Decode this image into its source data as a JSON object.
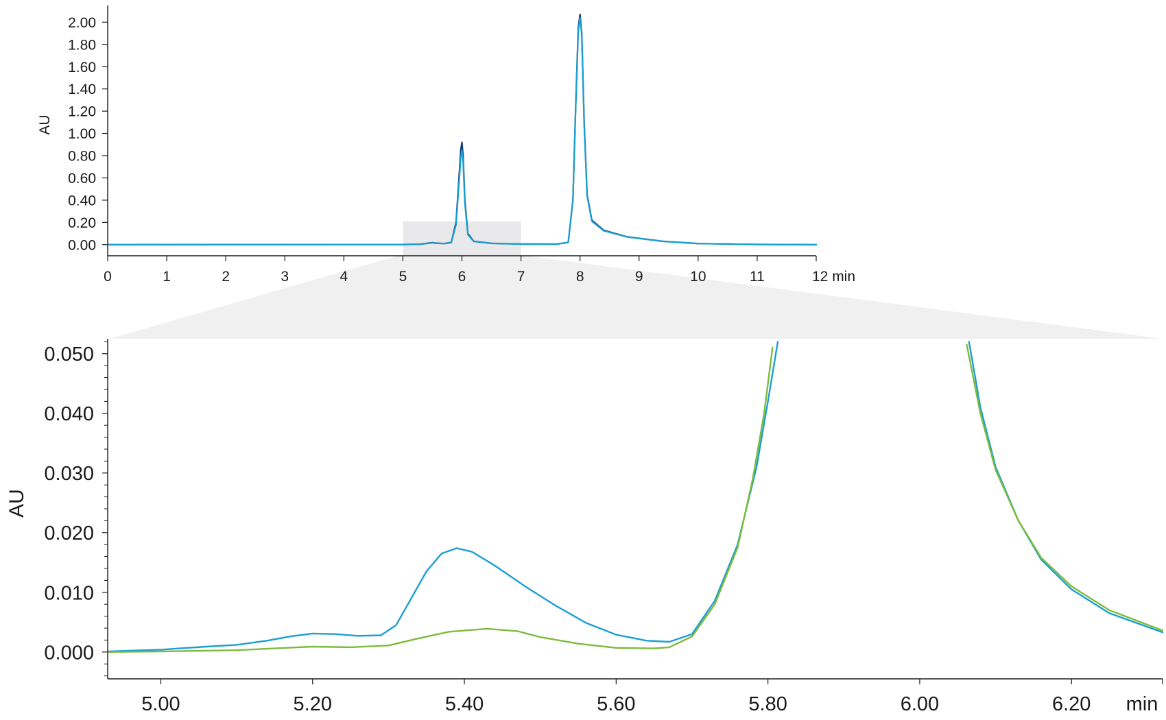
{
  "chart_data": [
    {
      "type": "line",
      "title": "",
      "xlabel": "",
      "ylabel": "AU",
      "x_unit": "min",
      "xlim": [
        0,
        12
      ],
      "ylim": [
        -0.1,
        2.15
      ],
      "xticks": [
        0,
        1,
        2,
        3,
        4,
        5,
        6,
        7,
        8,
        9,
        10,
        11,
        12
      ],
      "xtick_labels": [
        "0",
        "1",
        "2",
        "3",
        "4",
        "5",
        "6",
        "7",
        "8",
        "9",
        "10",
        "11",
        "12 min"
      ],
      "yticks": [
        0,
        0.2,
        0.4,
        0.6,
        0.8,
        1.0,
        1.2,
        1.4,
        1.6,
        1.8,
        2.0
      ],
      "ytick_labels": [
        "0.00",
        "0.20",
        "0.40",
        "0.60",
        "0.80",
        "1.00",
        "1.20",
        "1.40",
        "1.60",
        "1.80",
        "2.00"
      ],
      "zoom_region_x": [
        5,
        7
      ],
      "zoom_region_y": [
        0,
        0.21
      ],
      "grid": false,
      "series": [
        {
          "color": "#0d3b6e",
          "x": [
            0,
            5.0,
            5.3,
            5.45,
            5.5,
            5.55,
            5.7,
            5.82,
            5.9,
            5.95,
            5.98,
            6.0,
            6.02,
            6.05,
            6.1,
            6.2,
            6.5,
            7.0,
            7.6,
            7.8,
            7.88,
            7.93,
            7.97,
            8.0,
            8.03,
            8.07,
            8.12,
            8.2,
            8.4,
            8.8,
            9.4,
            10.0,
            11.0,
            12.0
          ],
          "y": [
            0,
            0.001,
            0.005,
            0.015,
            0.018,
            0.014,
            0.01,
            0.02,
            0.2,
            0.6,
            0.85,
            0.92,
            0.8,
            0.4,
            0.1,
            0.03,
            0.012,
            0.006,
            0.005,
            0.02,
            0.4,
            1.3,
            1.95,
            2.07,
            1.9,
            1.1,
            0.45,
            0.22,
            0.13,
            0.07,
            0.03,
            0.01,
            0.002,
            0
          ]
        },
        {
          "color": "#1a9fd4",
          "x": [
            0,
            5.0,
            5.3,
            5.45,
            5.5,
            5.55,
            5.7,
            5.82,
            5.9,
            5.95,
            5.98,
            6.0,
            6.02,
            6.05,
            6.1,
            6.2,
            6.5,
            7.0,
            7.6,
            7.8,
            7.88,
            7.93,
            7.97,
            8.0,
            8.03,
            8.07,
            8.12,
            8.2,
            8.4,
            8.8,
            9.4,
            10.0,
            11.0,
            12.0
          ],
          "y": [
            0,
            0.001,
            0.004,
            0.013,
            0.016,
            0.012,
            0.009,
            0.018,
            0.18,
            0.55,
            0.78,
            0.85,
            0.74,
            0.37,
            0.09,
            0.028,
            0.011,
            0.005,
            0.005,
            0.02,
            0.4,
            1.28,
            1.92,
            2.04,
            1.88,
            1.08,
            0.44,
            0.21,
            0.125,
            0.068,
            0.03,
            0.01,
            0.002,
            0
          ]
        }
      ]
    },
    {
      "type": "line",
      "title": "",
      "xlabel": "",
      "ylabel": "AU",
      "x_unit": "min",
      "xlim": [
        4.93,
        6.32
      ],
      "ylim": [
        -0.0045,
        0.0525
      ],
      "xticks": [
        5.0,
        5.2,
        5.4,
        5.6,
        5.8,
        6.0,
        6.2
      ],
      "xtick_labels": [
        "5.00",
        "5.20",
        "5.40",
        "5.60",
        "5.80",
        "6.00",
        "6.20"
      ],
      "x_end_label": "min",
      "yticks": [
        0,
        0.01,
        0.02,
        0.03,
        0.04,
        0.05
      ],
      "ytick_labels": [
        "0.000",
        "0.010",
        "0.020",
        "0.030",
        "0.040",
        "0.050"
      ],
      "grid": false,
      "series": [
        {
          "color": "#1a9fd4",
          "x": [
            4.93,
            5.0,
            5.06,
            5.1,
            5.14,
            5.17,
            5.2,
            5.23,
            5.26,
            5.29,
            5.31,
            5.33,
            5.35,
            5.37,
            5.39,
            5.41,
            5.44,
            5.48,
            5.52,
            5.56,
            5.6,
            5.64,
            5.67,
            5.7,
            5.73,
            5.76,
            5.785,
            5.8,
            5.813,
            null,
            6.065,
            6.08,
            6.1,
            6.13,
            6.16,
            6.2,
            6.25,
            6.32
          ],
          "y": [
            0.0001,
            0.0004,
            0.0009,
            0.0012,
            0.0019,
            0.0026,
            0.0031,
            0.003,
            0.0027,
            0.0028,
            0.0045,
            0.009,
            0.0135,
            0.0165,
            0.0174,
            0.0168,
            0.0145,
            0.011,
            0.0078,
            0.0049,
            0.0029,
            0.0019,
            0.0017,
            0.003,
            0.0086,
            0.018,
            0.031,
            0.042,
            0.052,
            null,
            0.052,
            0.041,
            0.031,
            0.022,
            0.0155,
            0.0105,
            0.0065,
            0.0033
          ]
        },
        {
          "color": "#7dbb3c",
          "x": [
            4.93,
            5.0,
            5.1,
            5.15,
            5.2,
            5.25,
            5.3,
            5.34,
            5.38,
            5.43,
            5.47,
            5.5,
            5.55,
            5.6,
            5.65,
            5.67,
            5.7,
            5.73,
            5.76,
            5.78,
            5.795,
            5.806,
            null,
            6.062,
            6.08,
            6.1,
            6.13,
            6.16,
            6.2,
            6.25,
            6.32
          ],
          "y": [
            0,
            0.0001,
            0.0003,
            0.0006,
            0.0009,
            0.0008,
            0.0011,
            0.0023,
            0.0034,
            0.0039,
            0.0035,
            0.0025,
            0.0014,
            0.0007,
            0.0006,
            0.0008,
            0.0026,
            0.008,
            0.0175,
            0.029,
            0.04,
            0.051,
            null,
            0.0515,
            0.04,
            0.0305,
            0.022,
            0.0158,
            0.011,
            0.007,
            0.0036
          ]
        }
      ]
    }
  ]
}
